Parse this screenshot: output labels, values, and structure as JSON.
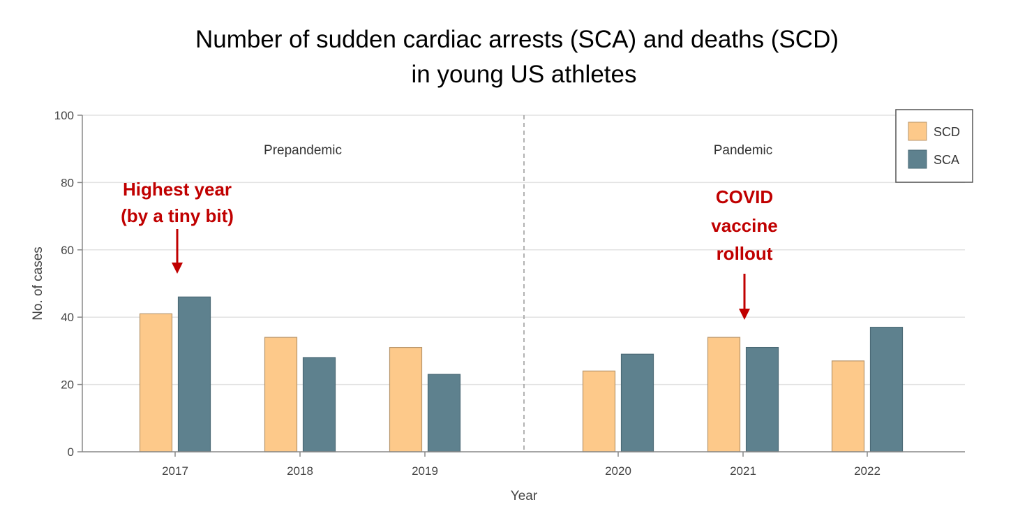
{
  "chart_data": {
    "type": "bar",
    "title": "Number of sudden cardiac arrests (SCA) and deaths (SCD)",
    "subtitle": "in young US athletes",
    "xlabel": "Year",
    "ylabel": "No. of cases",
    "ylim": [
      0,
      100
    ],
    "yticks": [
      "0",
      "20",
      "40",
      "60",
      "80",
      "100"
    ],
    "grid": true,
    "legend_position": "top-right",
    "categories": [
      "2017",
      "2018",
      "2019",
      "2020",
      "2021",
      "2022"
    ],
    "series": [
      {
        "name": "SCD",
        "color": "#fdc98a",
        "values": [
          41,
          34,
          31,
          24,
          34,
          27
        ]
      },
      {
        "name": "SCA",
        "color": "#5e818e",
        "values": [
          46,
          28,
          23,
          29,
          31,
          37
        ]
      }
    ],
    "periods": [
      {
        "label": "Prepandemic",
        "categories": [
          "2017",
          "2018",
          "2019"
        ]
      },
      {
        "label": "Pandemic",
        "categories": [
          "2020",
          "2021",
          "2022"
        ]
      }
    ],
    "annotations": [
      {
        "lines": [
          "Highest year",
          "(by a tiny bit)"
        ],
        "target": "2017",
        "color": "#c00000"
      },
      {
        "lines": [
          "COVID",
          "vaccine",
          "rollout"
        ],
        "target": "2021",
        "color": "#c00000"
      }
    ]
  }
}
